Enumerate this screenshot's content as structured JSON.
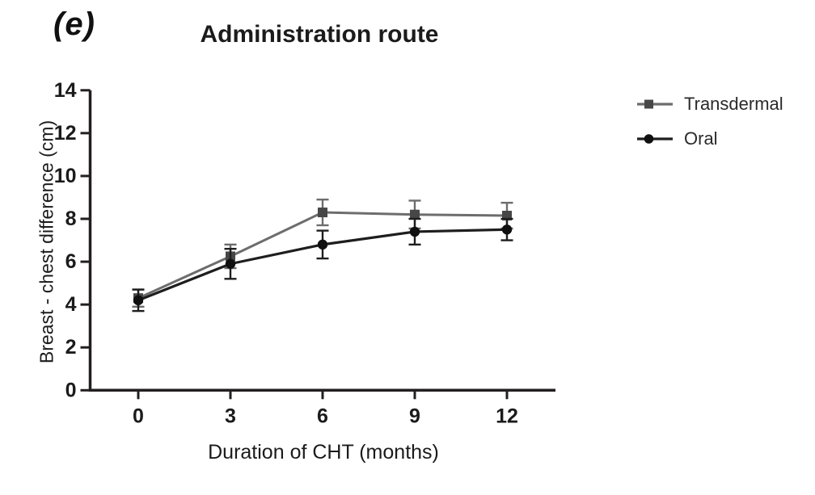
{
  "figure": {
    "panel_label": "(e)",
    "background_color": "#ffffff",
    "axis_color": "#231f20",
    "tick_label_color": "#1b1b1b"
  },
  "chart_data": {
    "type": "line",
    "title": "Administration route",
    "xlabel": "Duration of CHT (months)",
    "ylabel": "Breast - chest difference (cm)",
    "x": [
      0,
      3,
      6,
      9,
      12
    ],
    "xticks": [
      0,
      3,
      6,
      9,
      12
    ],
    "yticks": [
      0,
      2,
      4,
      6,
      8,
      10,
      12,
      14
    ],
    "xlim": [
      -1.6,
      13.6
    ],
    "ylim": [
      0,
      14
    ],
    "grid": false,
    "legend_position": "right-top",
    "error_bars": true,
    "series": [
      {
        "name": "Transdermal",
        "marker": "square",
        "line_color": "#6d6d6d",
        "marker_color": "#474747",
        "values": [
          4.3,
          6.25,
          8.3,
          8.2,
          8.15
        ],
        "errors": [
          0.4,
          0.55,
          0.6,
          0.65,
          0.6
        ]
      },
      {
        "name": "Oral",
        "marker": "circle",
        "line_color": "#1e1e1e",
        "marker_color": "#101010",
        "values": [
          4.2,
          5.9,
          6.8,
          7.4,
          7.5
        ],
        "errors": [
          0.5,
          0.7,
          0.65,
          0.6,
          0.5
        ]
      }
    ]
  }
}
